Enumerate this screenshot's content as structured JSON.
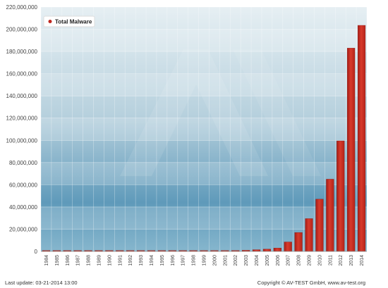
{
  "chart_data": {
    "type": "bar",
    "title": "",
    "xlabel": "",
    "ylabel": "",
    "ylim": [
      0,
      220000000
    ],
    "y_ticks": [
      "0",
      "20,000,000",
      "40,000,000",
      "60,000,000",
      "80,000,000",
      "100,000,000",
      "120,000,000",
      "140,000,000",
      "160,000,000",
      "180,000,000",
      "200,000,000",
      "220,000,000"
    ],
    "y_tick_values": [
      0,
      20000000,
      40000000,
      60000000,
      80000000,
      100000000,
      120000000,
      140000000,
      160000000,
      180000000,
      200000000,
      220000000
    ],
    "categories": [
      "1984",
      "1985",
      "1986",
      "1987",
      "1988",
      "1989",
      "1990",
      "1991",
      "1992",
      "1993",
      "1994",
      "1995",
      "1996",
      "1997",
      "1998",
      "1999",
      "2000",
      "2001",
      "2002",
      "2003",
      "2004",
      "2005",
      "2006",
      "2007",
      "2008",
      "2009",
      "2010",
      "2011",
      "2012",
      "2013",
      "2014"
    ],
    "series": [
      {
        "name": "Total Malware",
        "color": "#c0281f",
        "values": [
          0,
          0,
          0,
          0,
          0,
          0,
          0,
          0,
          0,
          0,
          0,
          0,
          0,
          0,
          100000,
          200000,
          400000,
          600000,
          800000,
          1000000,
          1500000,
          2000000,
          3000000,
          8500000,
          17000000,
          29500000,
          47000000,
          65000000,
          99500000,
          183000000,
          203500000
        ]
      }
    ],
    "grid": true,
    "legend_position": "top-left"
  },
  "legend": {
    "label": "Total Malware"
  },
  "footer": {
    "left": "Last update: 03-21-2014 13:00",
    "right": "Copyright © AV-TEST GmbH, www.av-test.org"
  },
  "colors": {
    "bar": "#c0281f",
    "bar_highlight": "#e85a47",
    "plot_bg_top": "#e3edf2",
    "plot_bg_bottom": "#4d8fb0"
  }
}
